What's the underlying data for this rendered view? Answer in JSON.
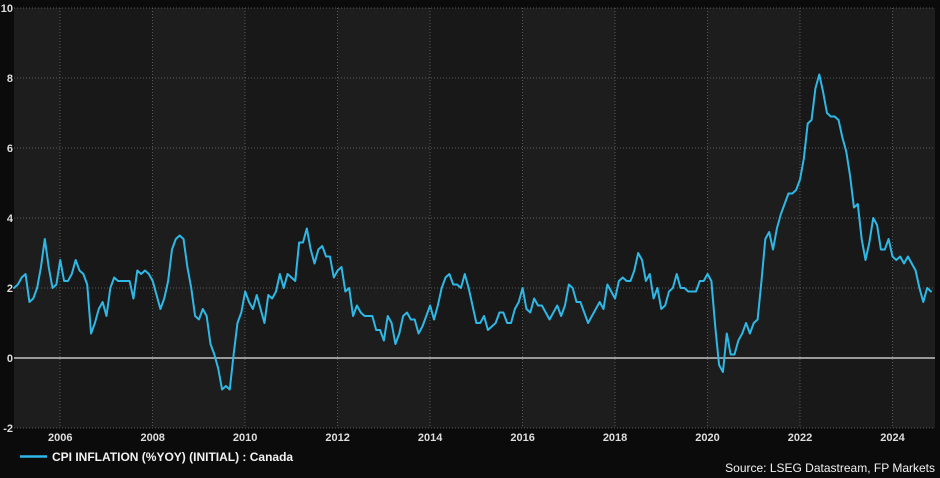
{
  "legend": {
    "label": "CPI INFLATION (%YOY) (INITIAL) : Canada"
  },
  "footer": {
    "source": "Source: LSEG Datastream, FP Markets"
  },
  "chart_data": {
    "type": "line",
    "title": "",
    "xlabel": "",
    "ylabel": "",
    "ylim": [
      -2,
      10
    ],
    "yticks": [
      10,
      8,
      6,
      4,
      2,
      0,
      -2
    ],
    "xticks": [
      2006,
      2008,
      2010,
      2012,
      2014,
      2016,
      2018,
      2020,
      2022,
      2024
    ],
    "grid": "dotted",
    "zero_line": true,
    "legend_position": "bottom-left",
    "colors": {
      "line": "#2eb8e6",
      "background": "#0b0b0b",
      "band_light": "#1d1d1d",
      "band_dark": "#181818",
      "gridline": "#5a5a5a",
      "zero_line": "#9a9a9a",
      "text": "#dedede"
    },
    "series": [
      {
        "name": "CPI INFLATION (%YOY) (INITIAL) : Canada",
        "frequency": "monthly",
        "start": "2005-01",
        "end": "2024-11",
        "monthly_values_by_year": {
          "2005": [
            2.0,
            2.1,
            2.3,
            2.4,
            1.6,
            1.7,
            2.0,
            2.6,
            3.4,
            2.6,
            2.0,
            2.1
          ],
          "2006": [
            2.8,
            2.2,
            2.2,
            2.4,
            2.8,
            2.5,
            2.4,
            2.1,
            0.7,
            1.0,
            1.4,
            1.6
          ],
          "2007": [
            1.2,
            2.0,
            2.3,
            2.2,
            2.2,
            2.2,
            2.2,
            1.7,
            2.5,
            2.4,
            2.5,
            2.4
          ],
          "2008": [
            2.2,
            1.8,
            1.4,
            1.7,
            2.2,
            3.1,
            3.4,
            3.5,
            3.4,
            2.6,
            2.0,
            1.2
          ],
          "2009": [
            1.1,
            1.4,
            1.2,
            0.4,
            0.1,
            -0.3,
            -0.9,
            -0.8,
            -0.9,
            0.1,
            1.0,
            1.3
          ],
          "2010": [
            1.9,
            1.6,
            1.4,
            1.8,
            1.4,
            1.0,
            1.8,
            1.7,
            1.9,
            2.4,
            2.0,
            2.4
          ],
          "2011": [
            2.3,
            2.2,
            3.3,
            3.3,
            3.7,
            3.1,
            2.7,
            3.1,
            3.2,
            2.9,
            2.9,
            2.3
          ],
          "2012": [
            2.5,
            2.6,
            1.9,
            2.0,
            1.2,
            1.5,
            1.3,
            1.2,
            1.2,
            1.2,
            0.8,
            0.8
          ],
          "2013": [
            0.5,
            1.2,
            1.0,
            0.4,
            0.7,
            1.2,
            1.3,
            1.1,
            1.1,
            0.7,
            0.9,
            1.2
          ],
          "2014": [
            1.5,
            1.1,
            1.5,
            2.0,
            2.3,
            2.4,
            2.1,
            2.1,
            2.0,
            2.4,
            2.0,
            1.5
          ],
          "2015": [
            1.0,
            1.0,
            1.2,
            0.8,
            0.9,
            1.0,
            1.3,
            1.3,
            1.0,
            1.0,
            1.4,
            1.6
          ],
          "2016": [
            2.0,
            1.4,
            1.3,
            1.7,
            1.5,
            1.5,
            1.3,
            1.1,
            1.3,
            1.5,
            1.2,
            1.5
          ],
          "2017": [
            2.1,
            2.0,
            1.6,
            1.6,
            1.3,
            1.0,
            1.2,
            1.4,
            1.6,
            1.4,
            2.1,
            1.9
          ],
          "2018": [
            1.7,
            2.2,
            2.3,
            2.2,
            2.2,
            2.5,
            3.0,
            2.8,
            2.2,
            2.4,
            1.7,
            2.0
          ],
          "2019": [
            1.4,
            1.5,
            1.9,
            2.0,
            2.4,
            2.0,
            2.0,
            1.9,
            1.9,
            1.9,
            2.2,
            2.2
          ],
          "2020": [
            2.4,
            2.2,
            0.9,
            -0.2,
            -0.4,
            0.7,
            0.1,
            0.1,
            0.5,
            0.7,
            1.0,
            0.7
          ],
          "2021": [
            1.0,
            1.1,
            2.2,
            3.4,
            3.6,
            3.1,
            3.7,
            4.1,
            4.4,
            4.7,
            4.7,
            4.8
          ],
          "2022": [
            5.1,
            5.7,
            6.7,
            6.8,
            7.7,
            8.1,
            7.6,
            7.0,
            6.9,
            6.9,
            6.8,
            6.3
          ],
          "2023": [
            5.9,
            5.2,
            4.3,
            4.4,
            3.4,
            2.8,
            3.3,
            4.0,
            3.8,
            3.1,
            3.1,
            3.4
          ],
          "2024": [
            2.9,
            2.8,
            2.9,
            2.7,
            2.9,
            2.7,
            2.5,
            2.0,
            1.6,
            2.0,
            1.9
          ]
        }
      }
    ]
  }
}
